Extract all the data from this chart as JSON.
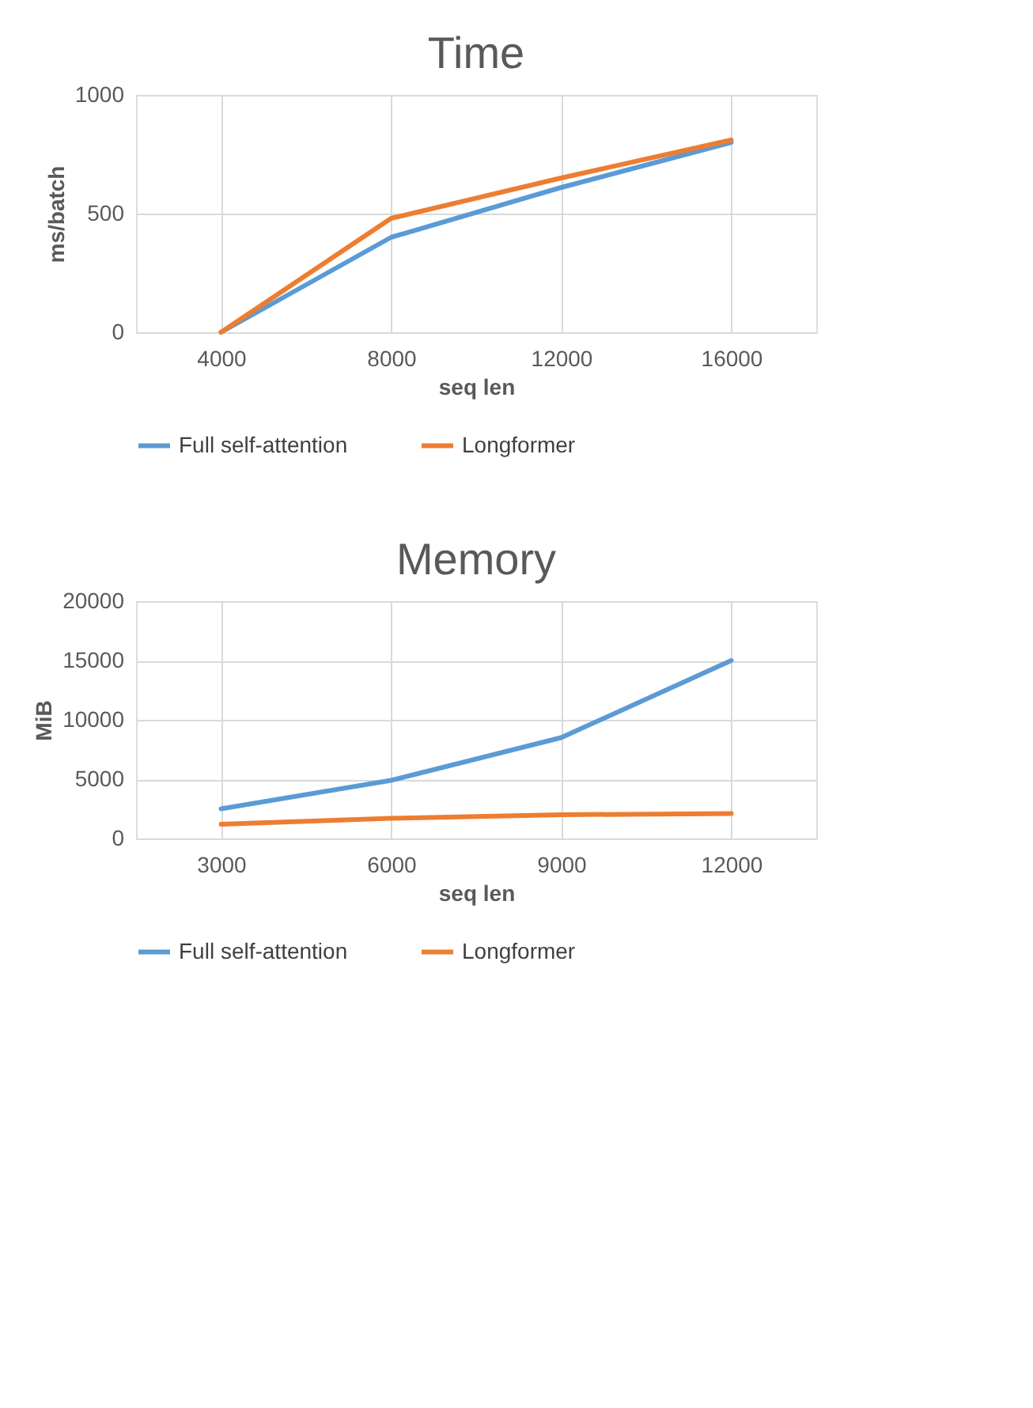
{
  "chart_data": [
    {
      "type": "line",
      "title": "Time",
      "xlabel": "seq len",
      "ylabel": "ms/batch",
      "categories": [
        "4000",
        "8000",
        "12000",
        "16000"
      ],
      "series": [
        {
          "name": "Full self-attention",
          "color": "#5b9bd5",
          "values": [
            0,
            400,
            610,
            800
          ]
        },
        {
          "name": "Longformer",
          "color": "#ed7d31",
          "values": [
            0,
            480,
            650,
            810
          ]
        }
      ],
      "ylim": [
        0,
        1000
      ],
      "yticks": [
        0,
        500,
        1000
      ],
      "grid": true,
      "legend": "bottom",
      "marker": "none",
      "line_style": "solid"
    },
    {
      "type": "line",
      "title": "Memory",
      "xlabel": "seq len",
      "ylabel": "MiB",
      "categories": [
        "3000",
        "6000",
        "9000",
        "12000"
      ],
      "series": [
        {
          "name": "Full self-attention",
          "color": "#5b9bd5",
          "values": [
            2500,
            4900,
            8500,
            15000
          ]
        },
        {
          "name": "Longformer",
          "color": "#ed7d31",
          "values": [
            1200,
            1700,
            2000,
            2100
          ]
        }
      ],
      "ylim": [
        0,
        20000
      ],
      "yticks": [
        0,
        5000,
        10000,
        15000,
        20000
      ],
      "grid": true,
      "legend": "bottom",
      "marker": "none",
      "line_style": "solid"
    }
  ]
}
